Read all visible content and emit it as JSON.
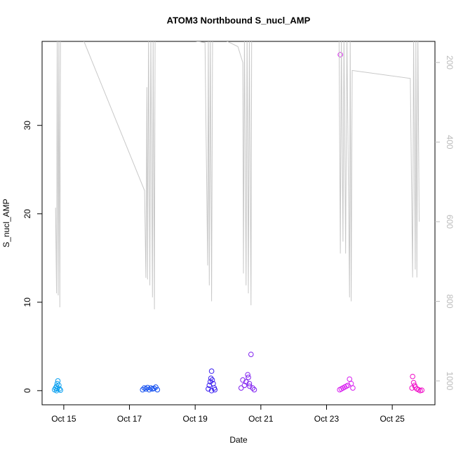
{
  "chart_data": {
    "type": "scatter",
    "title": "ATOM3 Northbound S_nucl_AMP",
    "xlabel": "Date",
    "ylabel": "S_nucl_AMP",
    "xlim": [
      14.34,
      26.3
    ],
    "xticks": [
      {
        "value": 15,
        "label": "Oct 15"
      },
      {
        "value": 17,
        "label": "Oct 17"
      },
      {
        "value": 19,
        "label": "Oct 19"
      },
      {
        "value": 21,
        "label": "Oct 21"
      },
      {
        "value": 23,
        "label": "Oct 23"
      },
      {
        "value": 25,
        "label": "Oct 25"
      }
    ],
    "ylim": [
      -1.6,
      39.5
    ],
    "yticks": [
      0,
      10,
      20,
      30
    ],
    "y2lim": [
      1060,
      147
    ],
    "y2ticks": [
      200,
      400,
      600,
      800,
      1000
    ],
    "y2color": "#bbbbbb",
    "series": [
      {
        "color": "#0aa0f0",
        "x": [
          14.72,
          14.75,
          14.78,
          14.8,
          14.82,
          14.85,
          14.87,
          14.9,
          14.78,
          14.8
        ],
        "values": [
          0.1,
          0.3,
          0.5,
          0.8,
          1.1,
          0.6,
          0.2,
          0.05,
          0.0,
          0.2
        ]
      },
      {
        "color": "#1450f0",
        "x": [
          17.4,
          17.45,
          17.5,
          17.55,
          17.6,
          17.65,
          17.7,
          17.75,
          17.8,
          17.85
        ],
        "values": [
          0.1,
          0.3,
          0.2,
          0.35,
          0.1,
          0.3,
          0.2,
          0.25,
          0.4,
          0.1
        ]
      },
      {
        "color": "#3a1ff0",
        "x": [
          19.4,
          19.43,
          19.46,
          19.48,
          19.5,
          19.52,
          19.55,
          19.58,
          19.6,
          19.5
        ],
        "values": [
          0.2,
          0.6,
          1.0,
          1.4,
          2.2,
          1.2,
          0.8,
          0.3,
          0.1,
          0.0
        ]
      },
      {
        "color": "#8020f0",
        "x": [
          20.4,
          20.45,
          20.5,
          20.55,
          20.6,
          20.62,
          20.65,
          20.7,
          20.75,
          20.8,
          20.66
        ],
        "values": [
          0.3,
          1.2,
          0.6,
          1.0,
          1.8,
          1.5,
          0.8,
          4.1,
          0.3,
          0.1,
          0.5
        ]
      },
      {
        "color": "#d820f0",
        "x": [
          23.4,
          23.45,
          23.5,
          23.55,
          23.6,
          23.65,
          23.7,
          23.75,
          23.8,
          23.42
        ],
        "values": [
          0.1,
          0.2,
          0.3,
          0.4,
          0.5,
          0.6,
          1.3,
          0.8,
          0.3,
          38.0
        ]
      },
      {
        "color": "#f010c8",
        "x": [
          25.6,
          25.62,
          25.65,
          25.68,
          25.7,
          25.75,
          25.8,
          25.85,
          25.9
        ],
        "values": [
          0.3,
          1.6,
          0.9,
          0.6,
          0.4,
          0.2,
          0.1,
          0.0,
          0.05
        ]
      },
      {
        "color": "#c8c8c8",
        "axis": "y2",
        "x": [
          14.75,
          14.78,
          14.8,
          14.83,
          14.85,
          14.88,
          14.9,
          15.58,
          17.46,
          17.5,
          17.53,
          17.55,
          17.58,
          17.62,
          17.65,
          17.7,
          17.72,
          17.76,
          17.78,
          17.8,
          19.3,
          19.38,
          19.4,
          19.43,
          19.46,
          19.5,
          19.53,
          19.56,
          20.3,
          20.45,
          20.47,
          20.5,
          20.55,
          20.58,
          20.62,
          20.65,
          20.7,
          20.72,
          23.38,
          23.42,
          23.45,
          23.5,
          23.53,
          23.58,
          23.62,
          23.7,
          23.72,
          23.75,
          23.78,
          25.55,
          25.62,
          25.65,
          25.7,
          25.72,
          25.75,
          25.78,
          25.82
        ],
        "values": [
          565,
          780,
          130,
          785,
          130,
          815,
          130,
          140,
          522,
          741,
          262,
          745,
          130,
          760,
          130,
          790,
          130,
          820,
          130,
          130,
          150,
          710,
          130,
          760,
          130,
          800,
          130,
          130,
          160,
          200,
          730,
          130,
          760,
          130,
          780,
          130,
          810,
          130,
          130,
          680,
          130,
          650,
          130,
          680,
          130,
          790,
          130,
          800,
          220,
          240,
          740,
          130,
          720,
          130,
          740,
          130,
          600
        ]
      }
    ]
  }
}
